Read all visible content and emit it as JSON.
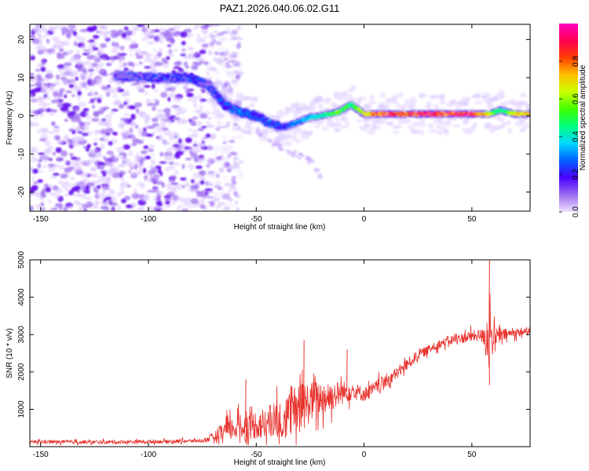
{
  "title": "PAZ1.2026.040.06.02.G11",
  "chart_data": [
    {
      "id": "spectrogram",
      "type": "heatmap",
      "xlabel": "Height of straight line (km)",
      "ylabel": "Frequency (Hz)",
      "xlim": [
        -155,
        77
      ],
      "ylim": [
        -25,
        24
      ],
      "xticks": [
        -150,
        -100,
        -50,
        0,
        50
      ],
      "yticks": [
        -20,
        -10,
        0,
        10,
        20
      ],
      "colorbar": {
        "label": "Normalized spectral amplitude",
        "range": [
          0,
          1
        ],
        "ticks": [
          0.0,
          0.2,
          0.4,
          0.6,
          0.8
        ],
        "tick_labels": [
          "0.0",
          "0.2",
          "0.4",
          "0.6",
          "0.8"
        ],
        "colormap": [
          "#f0e0ff",
          "#9a6cf0",
          "#4b00ff",
          "#0060ff",
          "#00d8ff",
          "#00ff80",
          "#40ff00",
          "#c8ff00",
          "#ffc000",
          "#ff4000",
          "#ff0050",
          "#ff00c0"
        ]
      },
      "ridge": {
        "x": [
          -115,
          -100,
          -90,
          -80,
          -72,
          -65,
          -58,
          -50,
          -44,
          -38,
          -32,
          -26,
          -20,
          -12,
          -6,
          0,
          10,
          20,
          30,
          40,
          50,
          58,
          63,
          70,
          77
        ],
        "y": [
          10.5,
          10.0,
          10.0,
          10.0,
          8.0,
          3.0,
          1.0,
          0.0,
          -2.0,
          -3.0,
          -2.0,
          -0.5,
          0.0,
          1.0,
          3.0,
          0.5,
          0.5,
          0.5,
          0.5,
          0.5,
          0.5,
          0.5,
          1.5,
          0.5,
          0.5
        ],
        "amplitude": [
          0.1,
          0.15,
          0.15,
          0.15,
          0.12,
          0.2,
          0.25,
          0.2,
          0.22,
          0.2,
          0.25,
          0.35,
          0.4,
          0.55,
          0.45,
          0.7,
          0.9,
          0.85,
          0.9,
          0.88,
          0.92,
          0.6,
          0.4,
          0.7,
          0.7
        ]
      },
      "noise_region_x": [
        -155,
        -72
      ],
      "tail": {
        "x": [
          -50,
          -43,
          -36,
          -30,
          -24,
          -20
        ],
        "y": [
          -4,
          -7,
          -9,
          -10.5,
          -12,
          -16
        ]
      }
    },
    {
      "id": "snr",
      "type": "line",
      "xlabel": "Height of straight line (km)",
      "ylabel": "SNR (10 * v/v)",
      "xlim": [
        -155,
        77
      ],
      "ylim": [
        0,
        5000
      ],
      "xticks": [
        -150,
        -100,
        -50,
        0,
        50
      ],
      "yticks": [
        1000,
        2000,
        3000,
        4000,
        5000
      ],
      "line_color": "#e8312c",
      "envelope": {
        "x": [
          -155,
          -120,
          -90,
          -75,
          -70,
          -65,
          -60,
          -55,
          -50,
          -45,
          -40,
          -35,
          -30,
          -25,
          -20,
          -15,
          -10,
          -5,
          0,
          5,
          10,
          15,
          20,
          25,
          30,
          35,
          40,
          45,
          50,
          55,
          58,
          60,
          65,
          70,
          77
        ],
        "mean": [
          130,
          120,
          140,
          160,
          250,
          400,
          500,
          520,
          600,
          600,
          700,
          850,
          1000,
          1200,
          1300,
          1350,
          1450,
          1500,
          1400,
          1550,
          1750,
          1950,
          2200,
          2450,
          2600,
          2750,
          2850,
          2900,
          2950,
          3000,
          2950,
          2900,
          3000,
          3050,
          3100
        ],
        "amp": [
          60,
          60,
          60,
          60,
          150,
          350,
          400,
          450,
          500,
          600,
          700,
          800,
          900,
          700,
          600,
          500,
          400,
          300,
          250,
          250,
          250,
          200,
          200,
          180,
          150,
          150,
          150,
          180,
          200,
          200,
          1200,
          400,
          200,
          150,
          150
        ]
      },
      "peaks": [
        {
          "x": 58,
          "y": 5000
        },
        {
          "x": -28,
          "y": 2850
        },
        {
          "x": -55,
          "y": 1800
        },
        {
          "x": -8,
          "y": 2600
        },
        {
          "x": 58,
          "y": 1650
        }
      ]
    }
  ]
}
